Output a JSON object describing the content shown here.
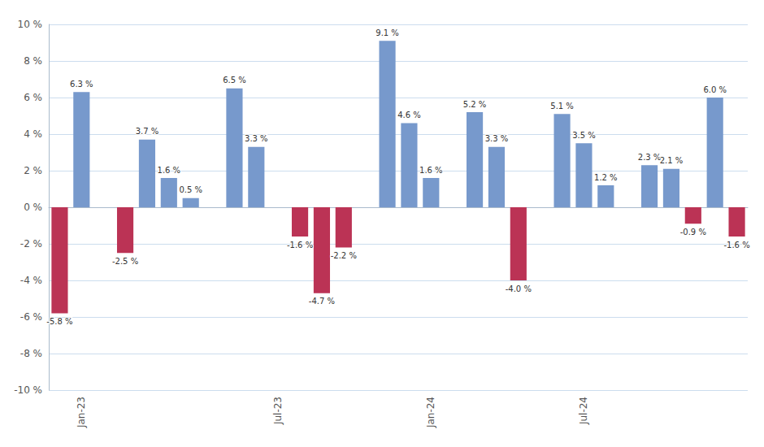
{
  "chart_data": {
    "type": "bar",
    "categories": [
      null,
      "Jan-23",
      null,
      null,
      null,
      null,
      null,
      null,
      null,
      null,
      "Jul-23",
      null,
      null,
      null,
      null,
      null,
      null,
      "Jan-24",
      null,
      null,
      null,
      null,
      null,
      null,
      "Jul-24",
      null,
      null,
      null,
      null,
      null,
      null,
      null
    ],
    "values": [
      -5.8,
      6.3,
      null,
      -2.5,
      3.7,
      1.6,
      0.5,
      null,
      6.5,
      3.3,
      null,
      -1.6,
      -4.7,
      -2.2,
      null,
      9.1,
      4.6,
      1.6,
      null,
      5.2,
      3.3,
      -4.0,
      null,
      5.1,
      3.5,
      1.2,
      null,
      2.3,
      2.1,
      -0.9,
      6.0,
      -1.6
    ],
    "value_labels": [
      "-5.8 %",
      "6.3 %",
      null,
      "-2.5 %",
      "3.7 %",
      "1.6 %",
      "0.5 %",
      null,
      "6.5 %",
      "3.3 %",
      null,
      "-1.6 %",
      "-4.7 %",
      "-2.2 %",
      null,
      "9.1 %",
      "4.6 %",
      "1.6 %",
      null,
      "5.2 %",
      "3.3 %",
      "-4.0 %",
      null,
      "5.1 %",
      "3.5 %",
      "1.2 %",
      null,
      "2.3 %",
      "2.1 %",
      "-0.9 %",
      "6.0 %",
      "-1.6 %"
    ],
    "colors": [
      "#BB3355",
      "#7799CC",
      null,
      "#BB3355",
      "#7799CC",
      "#7799CC",
      "#7799CC",
      null,
      "#7799CC",
      "#7799CC",
      null,
      "#BB3355",
      "#BB3355",
      "#BB3355",
      null,
      "#7799CC",
      "#7799CC",
      "#7799CC",
      null,
      "#7799CC",
      "#7799CC",
      "#BB3355",
      null,
      "#7799CC",
      "#7799CC",
      "#7799CC",
      null,
      "#7799CC",
      "#7799CC",
      "#BB3355",
      "#7799CC",
      "#BB3355"
    ],
    "ylim": [
      -10,
      10
    ],
    "yticks": [
      {
        "value": -10,
        "label": "-10 %"
      },
      {
        "value": -8,
        "label": "-8 %"
      },
      {
        "value": -6,
        "label": "-6 %"
      },
      {
        "value": -4,
        "label": "-4 %"
      },
      {
        "value": -2,
        "label": "-2 %"
      },
      {
        "value": 0,
        "label": "0 %"
      },
      {
        "value": 2,
        "label": "2 %"
      },
      {
        "value": 4,
        "label": "4 %"
      },
      {
        "value": 6,
        "label": "6 %"
      },
      {
        "value": 8,
        "label": "8 %"
      },
      {
        "value": 10,
        "label": "10 %"
      }
    ],
    "grid": true,
    "data_labels": true
  }
}
